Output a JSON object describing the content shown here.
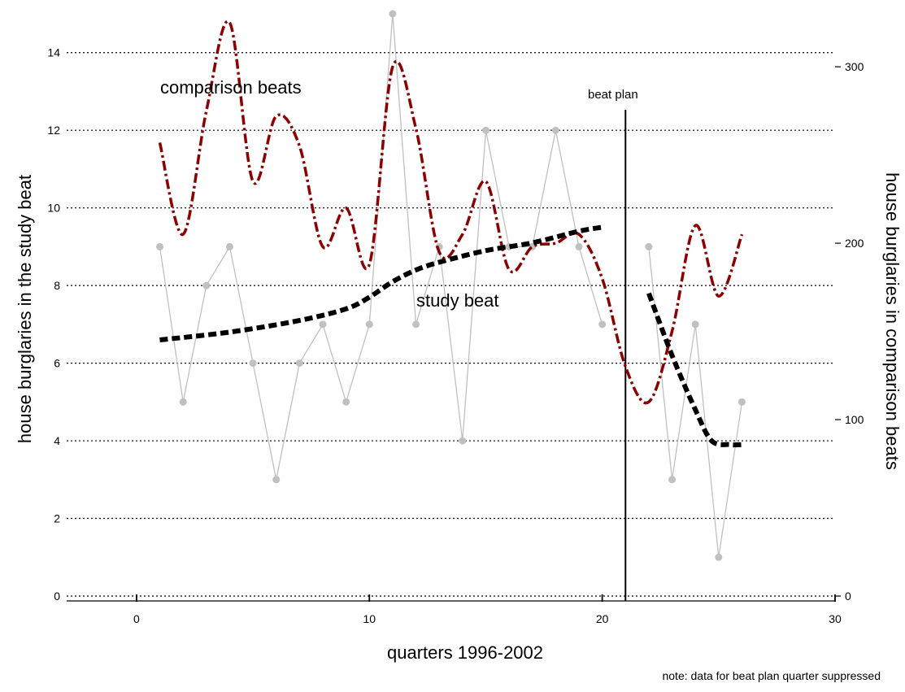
{
  "chart_data": {
    "type": "line",
    "xlabel": "quarters 1996-2002",
    "ylabel_left": "house burglaries in the study beat",
    "ylabel_right": "house burglaries in comparison beats",
    "xlim": [
      -3,
      30
    ],
    "ylim_left": [
      0,
      15
    ],
    "ylim_right": [
      0,
      330
    ],
    "x_ticks": [
      0,
      10,
      20,
      30
    ],
    "y_ticks_left": [
      0,
      2,
      4,
      6,
      8,
      10,
      12,
      14
    ],
    "y_ticks_right": [
      0,
      100,
      200,
      300
    ],
    "grid": "horizontal dotted at left-axis ticks",
    "annotations": {
      "comparison_label": "comparison beats",
      "study_label": "study beat",
      "beat_plan_label": "beat plan",
      "note": "note: data for beat plan quarter suppressed"
    },
    "beat_plan_x": 21,
    "colors": {
      "study_points": "#c0c0c0",
      "comparison_smooth": "#8b0000",
      "study_smooth": "#000000",
      "grid": "#000000"
    },
    "series": [
      {
        "name": "study beat",
        "axis": "left",
        "style": "points-and-lines",
        "x": [
          1,
          2,
          3,
          4,
          5,
          6,
          7,
          8,
          9,
          10,
          11,
          12,
          13,
          14,
          15,
          16,
          17,
          18,
          19,
          20,
          22,
          23,
          24,
          25,
          26
        ],
        "y": [
          9,
          5,
          8,
          9,
          6,
          3,
          6,
          7,
          5,
          7,
          15,
          7,
          9,
          4,
          12,
          9,
          9,
          12,
          9,
          7,
          9,
          3,
          7,
          1,
          5
        ]
      },
      {
        "name": "comparison beats",
        "axis": "right",
        "style": "smooth-dash-dot",
        "x": [
          1,
          2,
          3,
          4,
          5,
          6,
          7,
          8,
          9,
          10,
          11,
          12,
          13,
          14,
          15,
          16,
          17,
          18,
          19,
          20,
          21,
          22,
          23,
          24,
          25,
          26
        ],
        "y": [
          257,
          205,
          275,
          325,
          235,
          272,
          255,
          198,
          220,
          188,
          300,
          265,
          195,
          205,
          235,
          185,
          198,
          200,
          205,
          180,
          130,
          110,
          150,
          210,
          170,
          205
        ]
      },
      {
        "name": "study beat",
        "axis": "left",
        "style": "smooth-dashed",
        "x": [
          1,
          4,
          7,
          9,
          10,
          11,
          12,
          13,
          15,
          17,
          19,
          20
        ],
        "y": [
          6.6,
          6.8,
          7.1,
          7.4,
          7.7,
          8.1,
          8.4,
          8.6,
          8.9,
          9.1,
          9.4,
          9.5
        ],
        "x2": [
          22,
          23,
          24,
          24.7,
          25.5,
          26
        ],
        "y2": [
          7.8,
          6.2,
          4.8,
          4.0,
          3.9,
          3.9
        ]
      }
    ]
  }
}
